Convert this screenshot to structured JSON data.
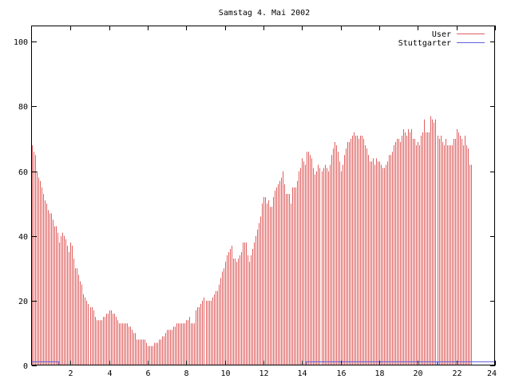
{
  "chart_data": {
    "type": "bar",
    "title": "Samstag 4. Mai 2002",
    "xlabel": "",
    "ylabel": "",
    "xlim": [
      0,
      24
    ],
    "ylim": [
      0,
      105
    ],
    "x_ticks": [
      "2",
      "4",
      "6",
      "8",
      "10",
      "12",
      "14",
      "16",
      "18",
      "20",
      "22",
      "24"
    ],
    "y_ticks": [
      "0",
      "20",
      "40",
      "60",
      "80",
      "100"
    ],
    "grid": false,
    "legend": "top-right",
    "series": [
      {
        "name": "User",
        "color": "#e06060",
        "style": "impulses",
        "step_minutes": 5,
        "values": [
          68,
          66,
          65,
          60,
          58,
          57,
          55,
          53,
          51,
          50,
          48,
          47,
          47,
          45,
          43,
          43,
          41,
          38,
          40,
          41,
          40,
          39,
          37,
          35,
          38,
          37,
          33,
          30,
          30,
          28,
          26,
          25,
          22,
          21,
          20,
          19,
          18,
          18,
          17,
          15,
          14,
          14,
          14,
          14,
          15,
          15,
          16,
          16,
          17,
          17,
          16,
          16,
          15,
          14,
          13,
          13,
          13,
          13,
          13,
          13,
          12,
          12,
          11,
          10,
          10,
          8,
          8,
          8,
          8,
          8,
          8,
          7,
          6,
          6,
          6,
          6,
          7,
          7,
          7,
          8,
          8,
          9,
          9,
          10,
          11,
          11,
          11,
          11,
          12,
          12,
          13,
          13,
          13,
          13,
          13,
          13,
          14,
          14,
          15,
          13,
          13,
          13,
          17,
          18,
          18,
          19,
          20,
          21,
          20,
          20,
          20,
          20,
          21,
          22,
          23,
          23,
          25,
          27,
          29,
          30,
          32,
          34,
          35,
          36,
          37,
          33,
          33,
          32,
          33,
          34,
          35,
          38,
          38,
          38,
          34,
          32,
          34,
          36,
          38,
          40,
          42,
          44,
          46,
          50,
          52,
          52,
          50,
          51,
          49,
          49,
          52,
          54,
          55,
          56,
          57,
          58,
          60,
          56,
          53,
          53,
          53,
          50,
          55,
          55,
          55,
          57,
          60,
          61,
          64,
          63,
          62,
          66,
          66,
          65,
          64,
          61,
          59,
          60,
          62,
          61,
          60,
          61,
          62,
          61,
          60,
          62,
          65,
          67,
          69,
          68,
          66,
          63,
          60,
          62,
          65,
          67,
          69,
          69,
          70,
          71,
          72,
          71,
          71,
          70,
          71,
          71,
          70,
          68,
          67,
          65,
          63,
          63,
          64,
          62,
          64,
          63,
          63,
          62,
          61,
          61,
          62,
          63,
          65,
          65,
          66,
          68,
          69,
          70,
          70,
          69,
          71,
          73,
          72,
          71,
          73,
          72,
          73,
          70,
          70,
          68,
          69,
          68,
          71,
          72,
          76,
          72,
          72,
          72,
          77,
          76,
          75,
          76,
          71,
          70,
          71,
          69,
          68,
          70,
          68,
          68,
          68,
          68,
          70,
          70,
          73,
          72,
          71,
          70,
          68,
          71,
          68,
          67,
          62,
          62
        ]
      },
      {
        "name": "Stuttgarter",
        "color": "#6060e0",
        "style": "steps",
        "segments": [
          {
            "from": 0,
            "to": 1.4,
            "value": 1
          },
          {
            "from": 1.4,
            "to": 14.2,
            "value": 0
          },
          {
            "from": 14.2,
            "to": 21.0,
            "value": 1
          },
          {
            "from": 21.0,
            "to": 21.05,
            "value": 0
          },
          {
            "from": 21.05,
            "to": 24,
            "value": 1
          }
        ]
      }
    ]
  }
}
